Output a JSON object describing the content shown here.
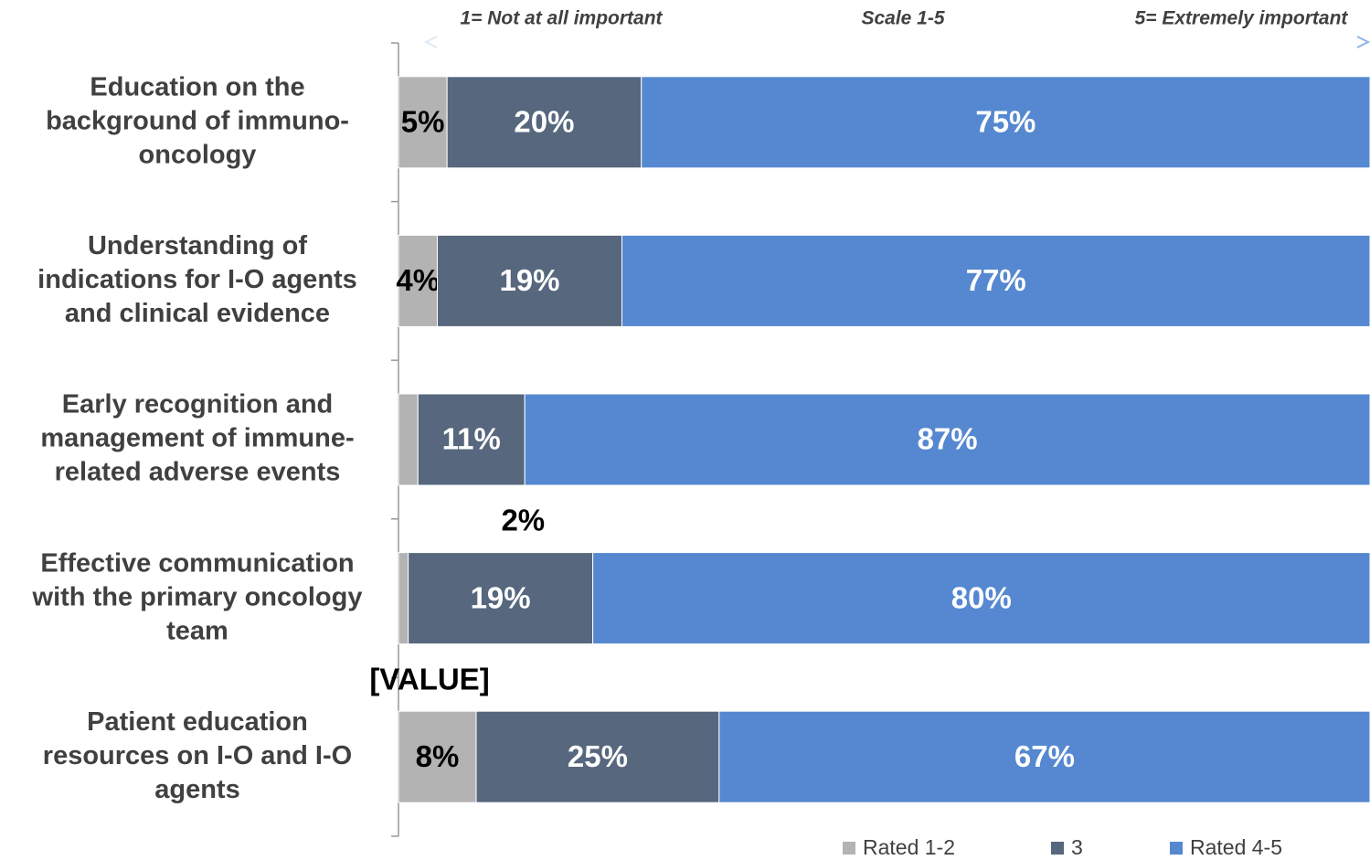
{
  "chart_data": {
    "type": "stacked-bar-horizontal",
    "annotations": [
      "1= Not at all important",
      "Scale 1-5",
      "5= Extremely important"
    ],
    "categories": [
      [
        "Education on the",
        "background of immuno-",
        "oncology"
      ],
      [
        "Understanding of",
        "indications for I-O agents",
        "and clinical evidence"
      ],
      [
        "Early recognition and",
        "management of immune-",
        "related adverse events"
      ],
      [
        "Effective communication",
        "with the primary oncology",
        "team"
      ],
      [
        "Patient education",
        "resources  on I-O and I-O",
        "agents"
      ]
    ],
    "series": [
      {
        "name": "Rated 1-2",
        "color": "#b3b3b3",
        "values": [
          5,
          4,
          2,
          1,
          8
        ],
        "value_labels": [
          "5%",
          "4%",
          "2%",
          "[VALUE]",
          "8%"
        ]
      },
      {
        "name": "3",
        "color": "#56677e",
        "values": [
          20,
          19,
          11,
          19,
          25
        ],
        "value_labels": [
          "20%",
          "19%",
          "11%",
          "19%",
          "25%"
        ]
      },
      {
        "name": "Rated 4-5",
        "color": "#5588d0",
        "values": [
          75,
          77,
          87,
          80,
          67
        ],
        "value_labels": [
          "75%",
          "77%",
          "87%",
          "80%",
          "67%"
        ]
      }
    ],
    "xlim": [
      0,
      100
    ],
    "legend": "bottom-right"
  }
}
